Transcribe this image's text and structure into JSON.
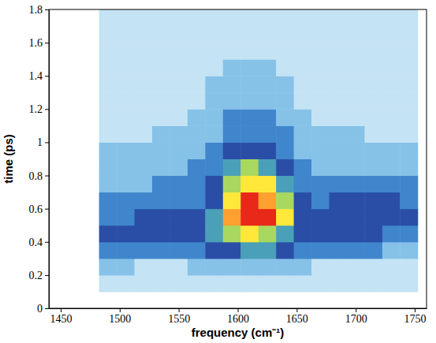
{
  "chart_data": {
    "type": "heatmap",
    "x_label": "frequency (cm⁻¹)",
    "y_label": "time (ps)",
    "xlim": [
      1440,
      1760
    ],
    "xticks": [
      1450,
      1500,
      1550,
      1600,
      1650,
      1700,
      1750
    ],
    "ylim": [
      0,
      1.8
    ],
    "yticks": [
      0,
      0.2,
      0.4,
      0.6,
      0.8,
      1,
      1.2,
      1.4,
      1.6,
      1.8
    ],
    "x": [
      1490,
      1505,
      1520,
      1535,
      1550,
      1565,
      1580,
      1595,
      1610,
      1625,
      1640,
      1655,
      1670,
      1685,
      1700,
      1715,
      1730,
      1745
    ],
    "y": [
      0.15,
      0.25,
      0.35,
      0.45,
      0.55,
      0.65,
      0.75,
      0.85,
      0.95,
      1.05,
      1.15,
      1.25,
      1.35,
      1.45,
      1.55,
      1.65,
      1.75
    ],
    "z": [
      [
        1,
        1,
        1,
        1,
        1,
        1,
        1,
        1,
        1,
        1,
        1,
        1,
        1,
        1,
        1,
        1,
        1,
        1
      ],
      [
        2,
        2,
        1,
        1,
        1,
        2,
        2,
        2,
        2,
        2,
        2,
        2,
        1,
        1,
        1,
        1,
        1,
        1
      ],
      [
        3,
        3,
        3,
        3,
        3,
        3,
        4,
        4,
        5,
        5,
        4,
        3,
        3,
        3,
        3,
        3,
        2,
        2
      ],
      [
        4,
        4,
        4,
        4,
        4,
        4,
        5,
        6,
        7,
        6,
        5,
        4,
        4,
        4,
        4,
        4,
        3,
        3
      ],
      [
        3,
        3,
        4,
        4,
        4,
        4,
        5,
        8,
        9,
        9,
        7,
        4,
        4,
        4,
        4,
        4,
        4,
        4
      ],
      [
        3,
        3,
        3,
        3,
        3,
        3,
        4,
        7,
        9,
        8,
        6,
        4,
        3,
        4,
        4,
        4,
        4,
        3
      ],
      [
        2,
        2,
        2,
        3,
        3,
        3,
        4,
        6,
        7,
        7,
        5,
        3,
        3,
        3,
        3,
        3,
        3,
        3
      ],
      [
        2,
        2,
        2,
        2,
        2,
        3,
        3,
        5,
        6,
        5,
        4,
        3,
        2,
        2,
        2,
        2,
        2,
        2
      ],
      [
        2,
        2,
        2,
        2,
        2,
        2,
        3,
        4,
        4,
        4,
        3,
        2,
        2,
        2,
        2,
        2,
        2,
        2
      ],
      [
        1,
        1,
        1,
        2,
        2,
        2,
        2,
        3,
        3,
        3,
        3,
        2,
        2,
        2,
        2,
        1,
        1,
        1
      ],
      [
        1,
        1,
        1,
        1,
        1,
        2,
        2,
        3,
        3,
        3,
        2,
        2,
        1,
        1,
        1,
        1,
        1,
        1
      ],
      [
        1,
        1,
        1,
        1,
        1,
        1,
        2,
        2,
        2,
        2,
        2,
        1,
        1,
        1,
        1,
        1,
        1,
        1
      ],
      [
        1,
        1,
        1,
        1,
        1,
        1,
        2,
        2,
        2,
        2,
        2,
        1,
        1,
        1,
        1,
        1,
        1,
        1
      ],
      [
        1,
        1,
        1,
        1,
        1,
        1,
        1,
        2,
        2,
        2,
        1,
        1,
        1,
        1,
        1,
        1,
        1,
        1
      ],
      [
        1,
        1,
        1,
        1,
        1,
        1,
        1,
        1,
        1,
        1,
        1,
        1,
        1,
        1,
        1,
        1,
        1,
        1
      ],
      [
        1,
        1,
        1,
        1,
        1,
        1,
        1,
        1,
        1,
        1,
        1,
        1,
        1,
        1,
        1,
        1,
        1,
        1
      ],
      [
        1,
        1,
        1,
        1,
        1,
        1,
        1,
        1,
        1,
        1,
        1,
        1,
        1,
        1,
        1,
        1,
        1,
        1
      ]
    ]
  }
}
